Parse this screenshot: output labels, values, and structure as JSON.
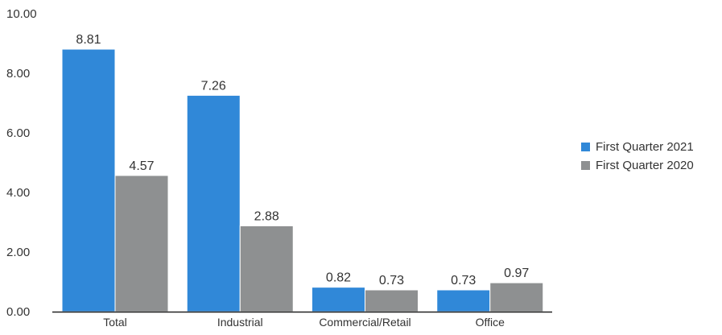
{
  "chart_data": {
    "type": "bar",
    "categories": [
      "Total",
      "Industrial",
      "Commercial/Retail",
      "Office"
    ],
    "series": [
      {
        "name": "First Quarter 2021",
        "color": "#3088D8",
        "values": [
          8.81,
          7.26,
          0.82,
          0.73
        ]
      },
      {
        "name": "First Quarter 2020",
        "color": "#8E9091",
        "values": [
          4.57,
          2.88,
          0.73,
          0.97
        ]
      }
    ],
    "ylim": [
      0,
      10
    ],
    "yticks": [
      "0.00",
      "2.00",
      "4.00",
      "6.00",
      "8.00",
      "10.00"
    ],
    "title": "",
    "xlabel": "",
    "ylabel": "",
    "legend_position": "right",
    "grid": false
  }
}
